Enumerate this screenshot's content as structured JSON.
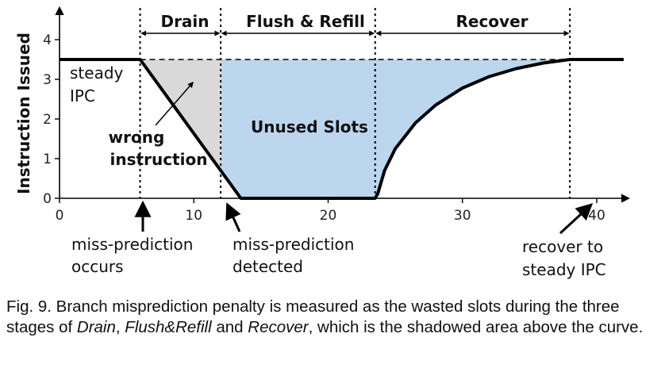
{
  "chart_data": {
    "type": "area",
    "ylabel": "Instruction Issued",
    "xlabel": "",
    "xlim": [
      0,
      42
    ],
    "ylim": [
      0,
      4.5
    ],
    "xticks": [
      0,
      10,
      20,
      30,
      40
    ],
    "yticks": [
      0,
      1,
      2,
      3,
      4
    ],
    "steady_ipc": 3.5,
    "curve": {
      "x": [
        0,
        6,
        13.5,
        23.5,
        23.7,
        24.2,
        25,
        26.5,
        28,
        30,
        32,
        34,
        36,
        38,
        42
      ],
      "y": [
        3.5,
        3.5,
        0,
        0,
        0.12,
        0.7,
        1.25,
        1.9,
        2.35,
        2.78,
        3.07,
        3.27,
        3.41,
        3.5,
        3.5
      ]
    },
    "events": [
      {
        "x": 6,
        "label": "miss-prediction occurs"
      },
      {
        "x": 12,
        "label": "miss-prediction detected"
      },
      {
        "x": 38,
        "label": "recover to steady IPC"
      }
    ],
    "phases": [
      {
        "name": "Drain",
        "x_start": 6,
        "x_end": 12
      },
      {
        "name": "Flush & Refill",
        "x_start": 12,
        "x_end": 23.5
      },
      {
        "name": "Recover",
        "x_start": 23.5,
        "x_end": 38
      }
    ],
    "annotations": {
      "steady_ipc": [
        "steady",
        "IPC"
      ],
      "wrong_instruction": [
        "wrong",
        "instruction"
      ],
      "unused_slots": "Unused Slots",
      "miss_occurs": [
        "miss-prediction",
        "occurs"
      ],
      "miss_detected": [
        "miss-prediction",
        "detected"
      ],
      "recover_steady": [
        "recover to",
        "steady IPC"
      ]
    },
    "colors": {
      "drain_fill": "#d9d9d9",
      "unused_fill": "#bcd6ee",
      "curve": "#000000"
    }
  },
  "caption": {
    "prefix": "Fig. 9. Branch misprediction penalty is measured as the wasted slots during the three stages of ",
    "drain": "Drain",
    "sep1": ", ",
    "flush": "Flush&Refill",
    "sep2": " and ",
    "recover": "Recover",
    "suffix": ", which is the shadowed area above the curve."
  }
}
